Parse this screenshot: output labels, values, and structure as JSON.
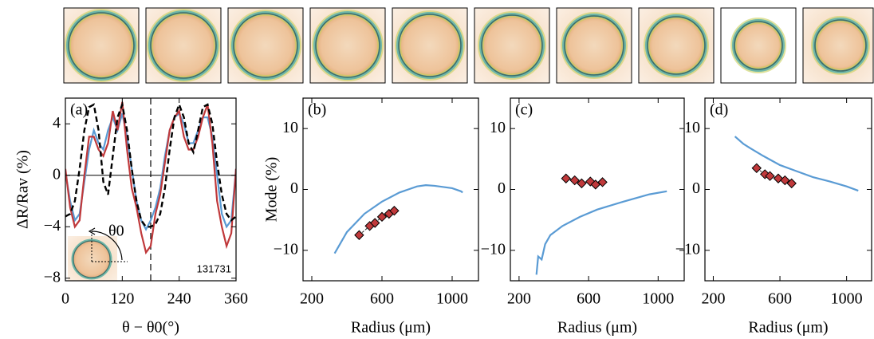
{
  "chart_data": [
    {
      "type": "line",
      "label": "(a)",
      "annotation": "131731",
      "inset_label": "θ0",
      "xlabel": "θ − θ0(°)",
      "ylabel": "ΔR/Rav (%)",
      "xlim": [
        0,
        360
      ],
      "xticks": [
        0,
        120,
        240,
        360
      ],
      "ylim": [
        -8.2,
        6
      ],
      "yticks": [
        {
          "value": -8,
          "label": "−8"
        },
        {
          "value": -4,
          "label": "−4"
        },
        0,
        4
      ],
      "vline": 180,
      "x": [
        0,
        10,
        20,
        30,
        40,
        50,
        60,
        70,
        80,
        90,
        100,
        110,
        120,
        130,
        140,
        150,
        160,
        170,
        180,
        190,
        200,
        210,
        220,
        230,
        240,
        250,
        260,
        270,
        280,
        290,
        300,
        310,
        320,
        330,
        340,
        350,
        360
      ],
      "series": [
        {
          "color": "#5a9bd4",
          "line_style": "solid",
          "values": [
            0.3,
            -2,
            -3.5,
            -3,
            -0.5,
            2,
            3.5,
            2.5,
            2,
            3.5,
            4.5,
            3.5,
            4.8,
            3,
            0.5,
            -2,
            -3.5,
            -4.2,
            -3.5,
            -2.5,
            -1,
            1.5,
            3.5,
            4.5,
            4.8,
            4,
            2.5,
            2.5,
            3.5,
            4.5,
            4.5,
            3,
            0,
            -3,
            -4,
            -3.5,
            0.5
          ]
        },
        {
          "color": "#c0393b",
          "line_style": "solid",
          "values": [
            0.5,
            -2.5,
            -4,
            -3.5,
            0,
            3,
            3,
            2,
            1.5,
            2.5,
            5,
            3.5,
            5.7,
            2,
            -1,
            -2.5,
            -4.5,
            -6,
            -5.5,
            -3,
            -1.5,
            1,
            3.5,
            4.5,
            5,
            3,
            2,
            2,
            3,
            4.5,
            5.5,
            2.5,
            -2,
            -4,
            -5.5,
            -4.5,
            0.5
          ]
        },
        {
          "color": "#000000",
          "line_style": "dashed",
          "values": [
            -3.2,
            -3,
            -2,
            0.5,
            3.5,
            5.3,
            5.5,
            3.5,
            -0.5,
            -1.5,
            1.5,
            4.5,
            5.5,
            3.5,
            0.5,
            -2,
            -3.5,
            -4,
            -4,
            -3.8,
            -3,
            -1,
            2,
            4.5,
            5.5,
            4.5,
            2.5,
            1.8,
            3.5,
            5.3,
            5.5,
            4,
            1,
            -1.5,
            -3,
            -3.5,
            -3.2
          ]
        }
      ]
    },
    {
      "type": "line",
      "label": "(b)",
      "xlabel": "Radius (μm)",
      "ylabel": "Mode (%)",
      "xlim": [
        150,
        1150
      ],
      "xticks": [
        200,
        600,
        1000
      ],
      "ylim": [
        -15,
        15
      ],
      "yticks": [
        {
          "value": -10,
          "label": "−10"
        },
        0,
        10
      ],
      "series": [
        {
          "color": "#5a9bd4",
          "line_style": "solid",
          "x": [
            330,
            400,
            500,
            600,
            700,
            800,
            850,
            900,
            1000,
            1050,
            1060
          ],
          "values": [
            -10.5,
            -7,
            -4,
            -2,
            -0.5,
            0.5,
            0.7,
            0.6,
            0.2,
            -0.3,
            -0.5
          ]
        },
        {
          "color": "#c0393b",
          "line_style": "dashed",
          "marker": "diamond",
          "x": [
            470,
            530,
            560,
            600,
            640,
            670
          ],
          "values": [
            -7.5,
            -6,
            -5.5,
            -4.5,
            -4,
            -3.5
          ]
        }
      ]
    },
    {
      "type": "line",
      "label": "(c)",
      "xlabel": "Radius (μm)",
      "xlim": [
        150,
        1150
      ],
      "xticks": [
        200,
        600,
        1000
      ],
      "ylim": [
        -15,
        15
      ],
      "yticks": [
        {
          "value": -10,
          "label": "−10"
        },
        0,
        10
      ],
      "series": [
        {
          "color": "#5a9bd4",
          "line_style": "solid",
          "x": [
            300,
            310,
            330,
            350,
            380,
            450,
            550,
            650,
            800,
            950,
            1050
          ],
          "values": [
            -14,
            -11,
            -11.5,
            -9,
            -7.5,
            -6,
            -4.5,
            -3.3,
            -2,
            -0.8,
            -0.3
          ]
        },
        {
          "color": "#c0393b",
          "line_style": "dashed",
          "marker": "diamond",
          "x": [
            470,
            520,
            560,
            610,
            640,
            680
          ],
          "values": [
            1.8,
            1.5,
            1.0,
            1.3,
            0.8,
            1.2
          ]
        }
      ]
    },
    {
      "type": "line",
      "label": "(d)",
      "xlabel": "Radius (μm)",
      "xlim": [
        150,
        1150
      ],
      "xticks": [
        200,
        600,
        1000
      ],
      "ylim": [
        -15,
        15
      ],
      "yticks": [
        {
          "value": -10,
          "label": "−10"
        },
        0,
        10
      ],
      "series": [
        {
          "color": "#5a9bd4",
          "line_style": "solid",
          "x": [
            330,
            380,
            420,
            500,
            600,
            700,
            800,
            900,
            1000,
            1070
          ],
          "values": [
            8.7,
            7.5,
            6.8,
            5.5,
            4,
            3,
            2,
            1.3,
            0.5,
            -0.2
          ]
        },
        {
          "color": "#c0393b",
          "line_style": "dashed",
          "marker": "diamond",
          "x": [
            460,
            510,
            540,
            590,
            630,
            670
          ],
          "values": [
            3.5,
            2.5,
            2.2,
            1.8,
            1.5,
            1
          ]
        }
      ]
    }
  ]
}
